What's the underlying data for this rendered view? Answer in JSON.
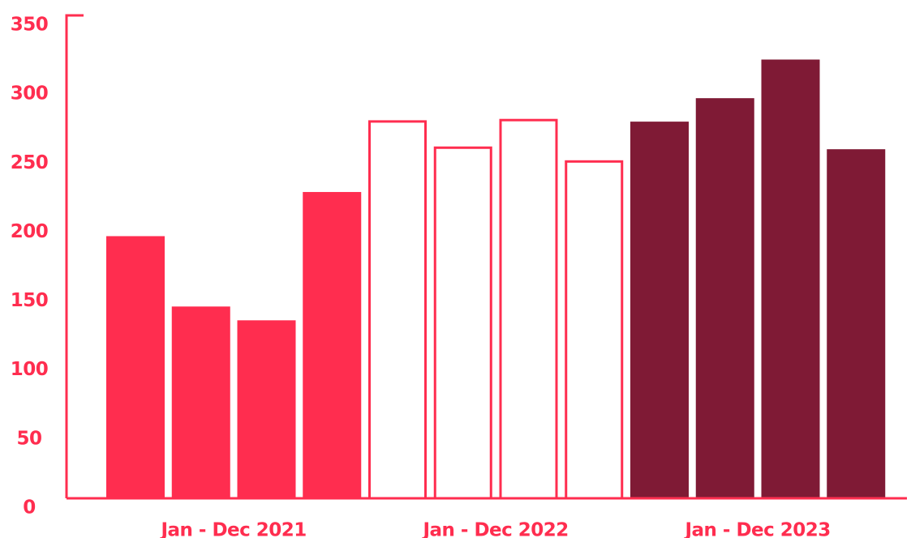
{
  "chart_data": {
    "type": "bar",
    "groups": [
      {
        "label": "Jan - Dec 2021",
        "color": "#ff2d4f",
        "style": "filled",
        "values": [
          190,
          139,
          129,
          222
        ]
      },
      {
        "label": "Jan - Dec 2022",
        "color": "#ff2d4f",
        "style": "outline",
        "values": [
          274,
          255,
          275,
          245
        ]
      },
      {
        "label": "Jan - Dec 2023",
        "color": "#7f1a35",
        "style": "filled",
        "values": [
          273,
          290,
          318,
          253
        ]
      }
    ],
    "axis_color": "#ff2d4f",
    "ylim": [
      0,
      350
    ],
    "yticks": [
      0,
      50,
      100,
      150,
      200,
      250,
      300,
      350
    ]
  }
}
